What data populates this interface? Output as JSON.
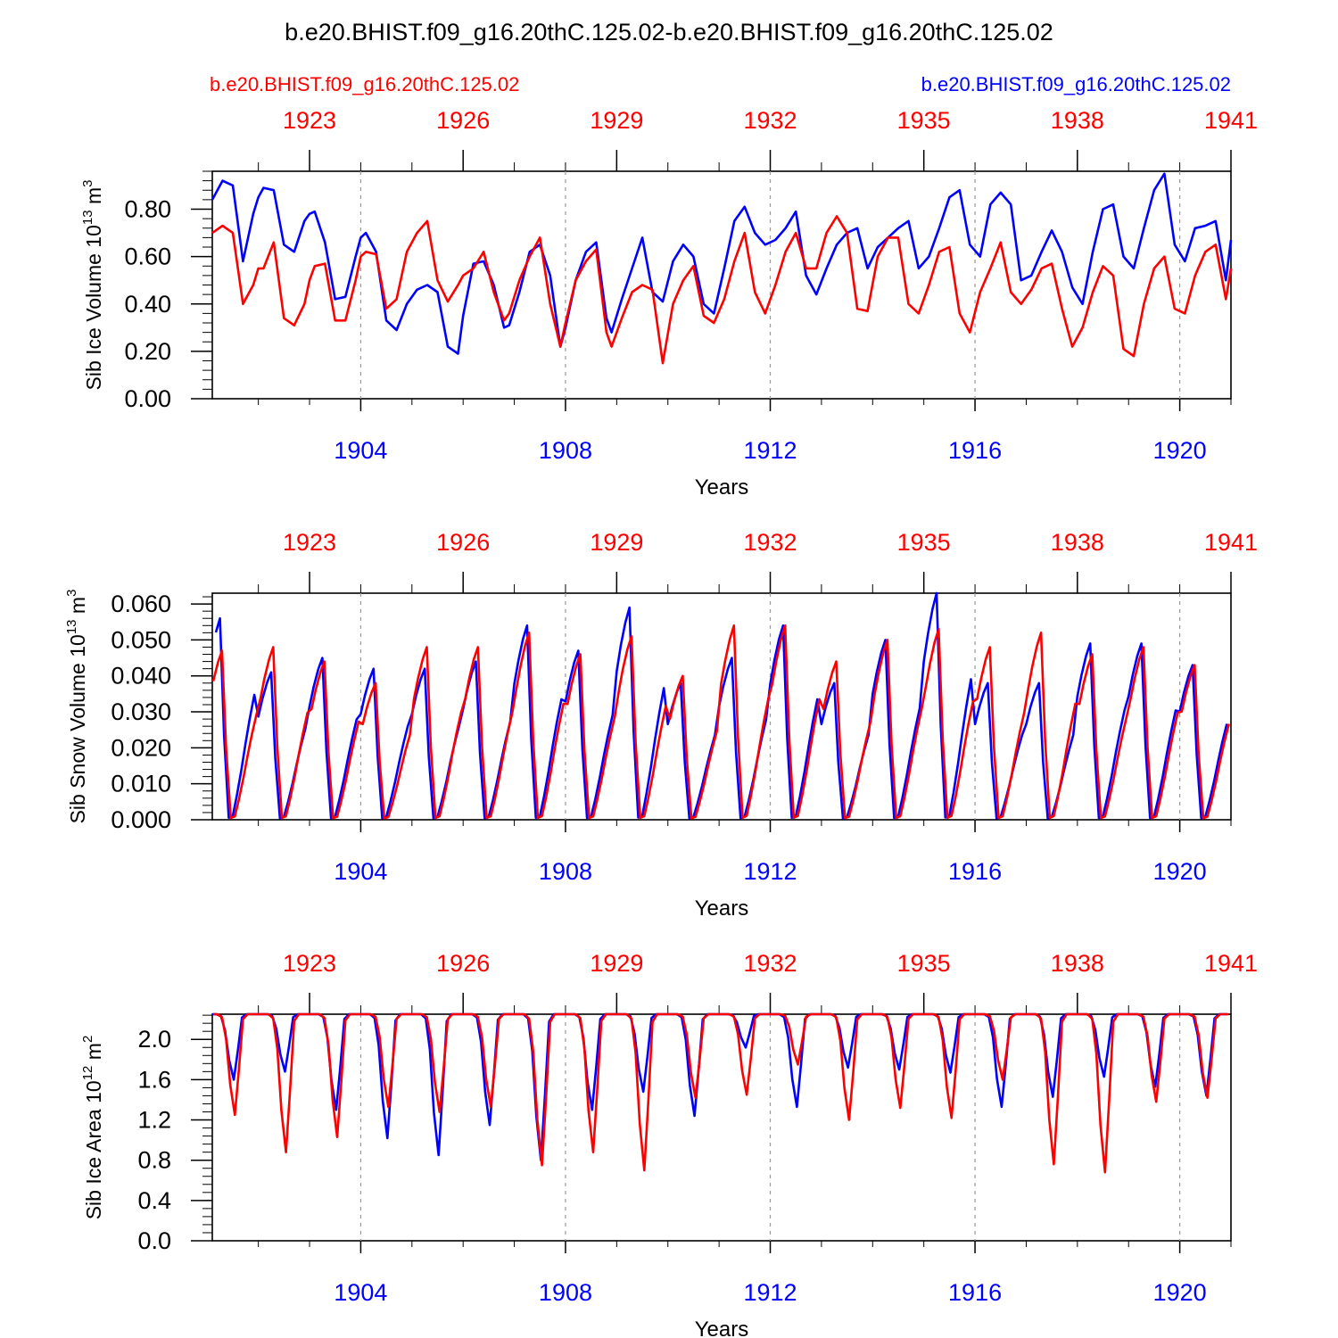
{
  "title": "b.e20.BHIST.f09_g16.20thC.125.02-b.e20.BHIST.f09_g16.20thC.125.02",
  "legend": {
    "left_case": "b.e20.BHIST.f09_g16.20thC.125.02",
    "right_case": "b.e20.BHIST.f09_g16.20thC.125.02"
  },
  "colors": {
    "case1": "#ff0000",
    "case2": "#0000ff",
    "axis": "#000000",
    "grid": "#999999"
  },
  "chart_data": [
    {
      "type": "line",
      "ylabel": "Sib Ice Volume 10",
      "ylabel_exp": "13",
      "ylabel_unit": " m",
      "ylabel_unit_exp": "3",
      "xlabel": "Years",
      "ylim": [
        0,
        0.96
      ],
      "yticks": [
        0.0,
        0.2,
        0.4,
        0.6,
        0.8
      ],
      "ytick_labels": [
        "0.00",
        "0.20",
        "0.40",
        "0.60",
        "0.80"
      ],
      "xlim_bottom": [
        1901.1,
        1921.0
      ],
      "bottom_ticks": [
        1904,
        1908,
        1912,
        1916,
        1920
      ],
      "top_ticks": [
        1923,
        1926,
        1929,
        1932,
        1935,
        1938,
        1941
      ],
      "series": [
        {
          "name": "b.e20.BHIST.f09_g16.20thC.125.02 (1901-1920)",
          "color_key": "case2",
          "x": [
            1901.1,
            1901.3,
            1901.5,
            1901.7,
            1901.9,
            1902.0,
            1902.1,
            1902.3,
            1902.5,
            1902.7,
            1902.9,
            1903.0,
            1903.1,
            1903.3,
            1903.5,
            1903.7,
            1903.9,
            1904.0,
            1904.1,
            1904.3,
            1904.5,
            1904.7,
            1904.9,
            1905.1,
            1905.3,
            1905.5,
            1905.7,
            1905.9,
            1906.0,
            1906.2,
            1906.4,
            1906.6,
            1906.8,
            1906.9,
            1907.1,
            1907.3,
            1907.5,
            1907.7,
            1907.9,
            1908.0,
            1908.2,
            1908.4,
            1908.6,
            1908.8,
            1908.9,
            1909.1,
            1909.3,
            1909.5,
            1909.7,
            1909.9,
            1910.1,
            1910.3,
            1910.5,
            1910.7,
            1910.9,
            1911.1,
            1911.3,
            1911.5,
            1911.7,
            1911.9,
            1912.1,
            1912.3,
            1912.5,
            1912.7,
            1912.9,
            1913.1,
            1913.3,
            1913.5,
            1913.7,
            1913.9,
            1914.1,
            1914.3,
            1914.5,
            1914.7,
            1914.9,
            1915.1,
            1915.3,
            1915.5,
            1915.7,
            1915.9,
            1916.1,
            1916.3,
            1916.5,
            1916.7,
            1916.9,
            1917.1,
            1917.3,
            1917.5,
            1917.7,
            1917.9,
            1918.1,
            1918.3,
            1918.5,
            1918.7,
            1918.9,
            1919.1,
            1919.3,
            1919.5,
            1919.7,
            1919.9,
            1920.1,
            1920.3,
            1920.5,
            1920.7,
            1920.9,
            1921.0
          ],
          "y": [
            0.84,
            0.92,
            0.9,
            0.58,
            0.78,
            0.85,
            0.89,
            0.88,
            0.65,
            0.62,
            0.75,
            0.78,
            0.79,
            0.66,
            0.42,
            0.43,
            0.6,
            0.68,
            0.7,
            0.62,
            0.33,
            0.29,
            0.4,
            0.46,
            0.48,
            0.45,
            0.22,
            0.19,
            0.35,
            0.57,
            0.58,
            0.48,
            0.3,
            0.31,
            0.45,
            0.62,
            0.65,
            0.52,
            0.22,
            0.3,
            0.5,
            0.62,
            0.66,
            0.34,
            0.28,
            0.42,
            0.55,
            0.68,
            0.45,
            0.41,
            0.58,
            0.65,
            0.6,
            0.4,
            0.36,
            0.55,
            0.75,
            0.81,
            0.7,
            0.65,
            0.67,
            0.72,
            0.79,
            0.52,
            0.44,
            0.55,
            0.65,
            0.7,
            0.72,
            0.55,
            0.64,
            0.68,
            0.72,
            0.75,
            0.55,
            0.6,
            0.72,
            0.85,
            0.88,
            0.65,
            0.6,
            0.82,
            0.87,
            0.82,
            0.5,
            0.52,
            0.62,
            0.71,
            0.62,
            0.47,
            0.4,
            0.62,
            0.8,
            0.82,
            0.6,
            0.55,
            0.72,
            0.88,
            0.95,
            0.65,
            0.58,
            0.72,
            0.73,
            0.75,
            0.5,
            0.67
          ]
        },
        {
          "name": "b.e20.BHIST.f09_g16.20thC.125.02 (1921-1940)",
          "color_key": "case1",
          "x": [
            1901.1,
            1901.3,
            1901.5,
            1901.7,
            1901.9,
            1902.0,
            1902.1,
            1902.3,
            1902.5,
            1902.7,
            1902.9,
            1903.0,
            1903.1,
            1903.3,
            1903.5,
            1903.7,
            1903.9,
            1904.0,
            1904.1,
            1904.3,
            1904.5,
            1904.7,
            1904.9,
            1905.1,
            1905.3,
            1905.5,
            1905.7,
            1905.9,
            1906.0,
            1906.2,
            1906.4,
            1906.6,
            1906.8,
            1906.9,
            1907.1,
            1907.3,
            1907.5,
            1907.7,
            1907.9,
            1908.0,
            1908.2,
            1908.4,
            1908.6,
            1908.8,
            1908.9,
            1909.1,
            1909.3,
            1909.5,
            1909.7,
            1909.9,
            1910.1,
            1910.3,
            1910.5,
            1910.7,
            1910.9,
            1911.1,
            1911.3,
            1911.5,
            1911.7,
            1911.9,
            1912.1,
            1912.3,
            1912.5,
            1912.7,
            1912.9,
            1913.1,
            1913.3,
            1913.5,
            1913.7,
            1913.9,
            1914.1,
            1914.3,
            1914.5,
            1914.7,
            1914.9,
            1915.1,
            1915.3,
            1915.5,
            1915.7,
            1915.9,
            1916.1,
            1916.3,
            1916.5,
            1916.7,
            1916.9,
            1917.1,
            1917.3,
            1917.5,
            1917.7,
            1917.9,
            1918.1,
            1918.3,
            1918.5,
            1918.7,
            1918.9,
            1919.1,
            1919.3,
            1919.5,
            1919.7,
            1919.9,
            1920.1,
            1920.3,
            1920.5,
            1920.7,
            1920.9,
            1921.0
          ],
          "y": [
            0.7,
            0.73,
            0.7,
            0.4,
            0.48,
            0.55,
            0.55,
            0.66,
            0.34,
            0.31,
            0.4,
            0.5,
            0.56,
            0.57,
            0.33,
            0.33,
            0.5,
            0.6,
            0.62,
            0.61,
            0.38,
            0.42,
            0.62,
            0.7,
            0.75,
            0.5,
            0.41,
            0.48,
            0.52,
            0.55,
            0.62,
            0.45,
            0.33,
            0.36,
            0.5,
            0.6,
            0.68,
            0.4,
            0.22,
            0.32,
            0.5,
            0.58,
            0.63,
            0.28,
            0.22,
            0.34,
            0.45,
            0.48,
            0.46,
            0.15,
            0.4,
            0.5,
            0.56,
            0.35,
            0.32,
            0.42,
            0.58,
            0.7,
            0.45,
            0.36,
            0.48,
            0.62,
            0.7,
            0.55,
            0.55,
            0.7,
            0.77,
            0.7,
            0.38,
            0.37,
            0.6,
            0.68,
            0.68,
            0.4,
            0.36,
            0.48,
            0.62,
            0.64,
            0.36,
            0.28,
            0.45,
            0.55,
            0.66,
            0.45,
            0.4,
            0.46,
            0.55,
            0.57,
            0.38,
            0.22,
            0.3,
            0.45,
            0.56,
            0.52,
            0.21,
            0.18,
            0.4,
            0.55,
            0.6,
            0.38,
            0.36,
            0.52,
            0.62,
            0.65,
            0.42,
            0.55
          ]
        }
      ]
    },
    {
      "type": "line",
      "ylabel": "Sib Snow Volume 10",
      "ylabel_exp": "13",
      "ylabel_unit": " m",
      "ylabel_unit_exp": "3",
      "xlabel": "Years",
      "ylim": [
        0,
        0.063
      ],
      "yticks": [
        0.0,
        0.01,
        0.02,
        0.03,
        0.04,
        0.05,
        0.06
      ],
      "ytick_labels": [
        "0.000",
        "0.010",
        "0.020",
        "0.030",
        "0.040",
        "0.050",
        "0.060"
      ],
      "xlim_bottom": [
        1901.1,
        1921.0
      ],
      "bottom_ticks": [
        1904,
        1908,
        1912,
        1916,
        1920
      ],
      "top_ticks": [
        1923,
        1926,
        1929,
        1932,
        1935,
        1938,
        1941
      ],
      "series": [
        {
          "name": "b.e20.BHIST.f09_g16.20thC.125.02 (1901-1920)",
          "color_key": "case2",
          "peaks": [
            0.056,
            0.041,
            0.045,
            0.042,
            0.042,
            0.044,
            0.054,
            0.047,
            0.059,
            0.038,
            0.045,
            0.054,
            0.038,
            0.05,
            0.063,
            0.038,
            0.038,
            0.049,
            0.049,
            0.043
          ]
        },
        {
          "name": "b.e20.BHIST.f09_g16.20thC.125.02 (1921-1940)",
          "color_key": "case1",
          "peaks": [
            0.047,
            0.048,
            0.044,
            0.038,
            0.048,
            0.048,
            0.052,
            0.046,
            0.051,
            0.04,
            0.054,
            0.054,
            0.044,
            0.05,
            0.053,
            0.048,
            0.052,
            0.046,
            0.048,
            0.043
          ]
        }
      ]
    },
    {
      "type": "line",
      "ylabel": "Sib Ice Area 10",
      "ylabel_exp": "12",
      "ylabel_unit": " m",
      "ylabel_unit_exp": "2",
      "xlabel": "Years",
      "ylim": [
        0,
        2.25
      ],
      "yticks": [
        0.0,
        0.4,
        0.8,
        1.2,
        1.6,
        2.0
      ],
      "ytick_labels": [
        "0.0",
        "0.4",
        "0.8",
        "1.2",
        "1.6",
        "2.0"
      ],
      "xlim_bottom": [
        1901.1,
        1921.0
      ],
      "bottom_ticks": [
        1904,
        1908,
        1912,
        1916,
        1920
      ],
      "top_ticks": [
        1923,
        1926,
        1929,
        1932,
        1935,
        1938,
        1941
      ],
      "series": [
        {
          "name": "b.e20.BHIST.f09_g16.20thC.125.02 (1901-1920)",
          "color_key": "case2",
          "minima": [
            1.6,
            1.68,
            1.3,
            1.02,
            0.85,
            1.15,
            0.8,
            1.3,
            1.48,
            1.24,
            1.92,
            1.33,
            1.72,
            1.7,
            1.67,
            1.33,
            1.43,
            1.63,
            1.53,
            1.44
          ]
        },
        {
          "name": "b.e20.BHIST.f09_g16.20thC.125.02 (1921-1940)",
          "color_key": "case1",
          "minima": [
            1.25,
            0.88,
            1.03,
            1.33,
            1.28,
            1.33,
            0.75,
            0.88,
            0.7,
            1.42,
            1.45,
            1.75,
            1.2,
            1.32,
            1.22,
            1.6,
            0.76,
            0.68,
            1.38,
            1.42
          ]
        }
      ]
    }
  ]
}
